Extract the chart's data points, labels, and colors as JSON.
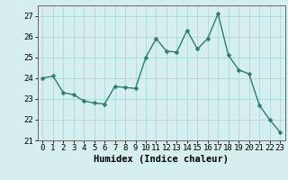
{
  "x": [
    0,
    1,
    2,
    3,
    4,
    5,
    6,
    7,
    8,
    9,
    10,
    11,
    12,
    13,
    14,
    15,
    16,
    17,
    18,
    19,
    20,
    21,
    22,
    23
  ],
  "y": [
    24.0,
    24.1,
    23.3,
    23.2,
    22.9,
    22.8,
    22.75,
    23.6,
    23.55,
    23.5,
    25.0,
    25.9,
    25.3,
    25.25,
    26.3,
    25.4,
    25.9,
    27.1,
    25.1,
    24.4,
    24.2,
    22.7,
    22.0,
    21.4
  ],
  "line_color": "#2d7d6f",
  "marker_color": "#2d7d6f",
  "bg_color": "#d5eeee",
  "grid_color": "#aed8d8",
  "xlabel": "Humidex (Indice chaleur)",
  "ylim": [
    21.0,
    27.5
  ],
  "xlim": [
    -0.5,
    23.5
  ],
  "yticks": [
    21,
    22,
    23,
    24,
    25,
    26,
    27
  ],
  "xticks": [
    0,
    1,
    2,
    3,
    4,
    5,
    6,
    7,
    8,
    9,
    10,
    11,
    12,
    13,
    14,
    15,
    16,
    17,
    18,
    19,
    20,
    21,
    22,
    23
  ],
  "tick_fontsize": 6.5,
  "xlabel_fontsize": 7.5,
  "line_width": 1.0,
  "marker_size": 2.5
}
